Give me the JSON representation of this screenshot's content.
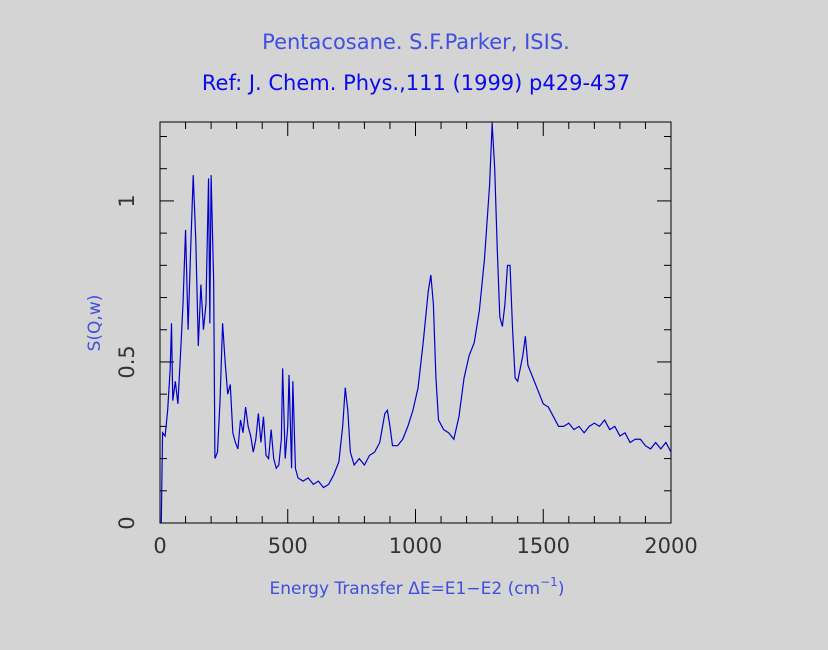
{
  "chart_data": {
    "type": "line",
    "title": "Pentacosane. S.F.Parker, ISIS.",
    "subtitle": "Ref: J. Chem. Phys.,111 (1999) p429-437",
    "xlabel": "Energy Transfer ΔE=E1−E2 (cm",
    "xlabel_superscript": "−1",
    "xlabel_end": ")",
    "ylabel": "S(Q,w)",
    "xlim": [
      0,
      2000
    ],
    "ylim": [
      0,
      1.245
    ],
    "xticks": [
      0,
      500,
      1000,
      1500,
      2000
    ],
    "yticks": [
      0,
      0.5,
      1
    ],
    "x_minor_ticks": [
      100,
      200,
      300,
      400,
      600,
      700,
      800,
      900,
      1100,
      1200,
      1300,
      1400,
      1600,
      1700,
      1800,
      1900
    ],
    "y_minor_ticks": [
      0.1,
      0.2,
      0.3,
      0.4,
      0.6,
      0.7,
      0.8,
      0.9,
      1.1,
      1.2
    ],
    "series": [
      {
        "color": "#0000cc",
        "x": [
          5,
          10,
          20,
          30,
          40,
          45,
          50,
          60,
          70,
          80,
          90,
          100,
          110,
          120,
          130,
          140,
          150,
          160,
          170,
          180,
          190,
          195,
          200,
          210,
          215,
          225,
          235,
          245,
          255,
          265,
          275,
          285,
          295,
          305,
          315,
          325,
          335,
          345,
          355,
          365,
          375,
          385,
          395,
          405,
          415,
          425,
          435,
          445,
          455,
          465,
          475,
          480,
          490,
          500,
          505,
          515,
          520,
          530,
          540,
          560,
          580,
          600,
          620,
          640,
          660,
          680,
          700,
          715,
          725,
          735,
          745,
          760,
          780,
          800,
          820,
          840,
          860,
          880,
          890,
          900,
          910,
          930,
          950,
          970,
          990,
          1010,
          1030,
          1050,
          1060,
          1070,
          1080,
          1090,
          1110,
          1130,
          1150,
          1170,
          1190,
          1210,
          1230,
          1250,
          1270,
          1290,
          1300,
          1310,
          1320,
          1330,
          1340,
          1350,
          1360,
          1370,
          1380,
          1390,
          1400,
          1420,
          1430,
          1440,
          1460,
          1480,
          1500,
          1520,
          1540,
          1560,
          1580,
          1600,
          1620,
          1640,
          1660,
          1680,
          1700,
          1720,
          1740,
          1760,
          1780,
          1800,
          1820,
          1840,
          1860,
          1880,
          1900,
          1920,
          1940,
          1960,
          1980,
          2000
        ],
        "values": [
          0.0,
          0.28,
          0.27,
          0.35,
          0.48,
          0.62,
          0.38,
          0.44,
          0.37,
          0.52,
          0.68,
          0.91,
          0.6,
          0.85,
          1.08,
          0.88,
          0.55,
          0.74,
          0.6,
          0.68,
          1.07,
          0.62,
          1.08,
          0.75,
          0.2,
          0.22,
          0.38,
          0.62,
          0.5,
          0.4,
          0.43,
          0.28,
          0.25,
          0.23,
          0.32,
          0.28,
          0.36,
          0.3,
          0.27,
          0.22,
          0.26,
          0.34,
          0.25,
          0.33,
          0.21,
          0.2,
          0.29,
          0.2,
          0.17,
          0.18,
          0.26,
          0.48,
          0.2,
          0.3,
          0.46,
          0.17,
          0.44,
          0.17,
          0.14,
          0.13,
          0.14,
          0.12,
          0.13,
          0.11,
          0.12,
          0.15,
          0.19,
          0.3,
          0.42,
          0.35,
          0.22,
          0.18,
          0.2,
          0.18,
          0.21,
          0.22,
          0.25,
          0.34,
          0.35,
          0.3,
          0.24,
          0.24,
          0.26,
          0.3,
          0.35,
          0.42,
          0.56,
          0.72,
          0.77,
          0.68,
          0.45,
          0.32,
          0.29,
          0.28,
          0.26,
          0.33,
          0.45,
          0.52,
          0.56,
          0.66,
          0.82,
          1.05,
          1.24,
          1.1,
          0.85,
          0.64,
          0.61,
          0.68,
          0.8,
          0.8,
          0.6,
          0.45,
          0.44,
          0.52,
          0.58,
          0.49,
          0.45,
          0.41,
          0.37,
          0.36,
          0.33,
          0.3,
          0.3,
          0.31,
          0.29,
          0.3,
          0.28,
          0.3,
          0.31,
          0.3,
          0.32,
          0.29,
          0.3,
          0.27,
          0.28,
          0.25,
          0.26,
          0.26,
          0.24,
          0.23,
          0.25,
          0.23,
          0.25,
          0.22
        ]
      }
    ]
  }
}
